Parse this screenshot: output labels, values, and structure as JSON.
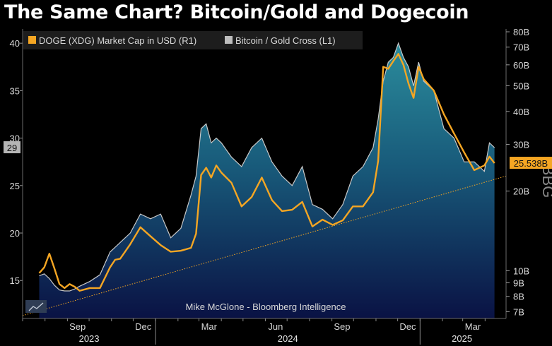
{
  "title": "The Same Chart? Bitcoin/Gold and Dogecoin",
  "credit": "Mike McGlone - Bloomberg Intelligence",
  "watermark": "BBG",
  "colors": {
    "background": "#000000",
    "doge": "#f5a623",
    "btc_gold": "#c8c8c8",
    "trend": "#f5a623"
  },
  "chart_data": {
    "type": "line",
    "series": [
      {
        "name": "DOGE (XDG) Market Cap in USD (R1)",
        "axis": "right",
        "last_value_label": "25.538B",
        "x": [
          "2023-07-24",
          "2023-07-31",
          "2023-08-07",
          "2023-08-14",
          "2023-08-21",
          "2023-08-28",
          "2023-09-04",
          "2023-09-11",
          "2023-09-18",
          "2023-10-02",
          "2023-10-16",
          "2023-10-30",
          "2023-11-06",
          "2023-11-13",
          "2023-11-27",
          "2023-12-11",
          "2023-12-25",
          "2024-01-08",
          "2024-01-22",
          "2024-02-05",
          "2024-02-19",
          "2024-02-26",
          "2024-03-04",
          "2024-03-11",
          "2024-03-18",
          "2024-03-25",
          "2024-04-01",
          "2024-04-15",
          "2024-04-29",
          "2024-05-13",
          "2024-05-27",
          "2024-06-10",
          "2024-06-24",
          "2024-07-08",
          "2024-07-22",
          "2024-08-05",
          "2024-08-19",
          "2024-09-02",
          "2024-09-16",
          "2024-09-30",
          "2024-10-14",
          "2024-10-28",
          "2024-11-04",
          "2024-11-11",
          "2024-11-18",
          "2024-11-25",
          "2024-12-02",
          "2024-12-09",
          "2024-12-16",
          "2024-12-23",
          "2024-12-30",
          "2025-01-06",
          "2025-01-20",
          "2025-02-03",
          "2025-02-17",
          "2025-03-03",
          "2025-03-17",
          "2025-03-31",
          "2025-04-07",
          "2025-04-14"
        ],
        "values": [
          9.8,
          10.3,
          11.6,
          10.2,
          8.9,
          8.6,
          8.9,
          8.7,
          8.4,
          8.6,
          8.6,
          10.3,
          11.0,
          11.1,
          12.6,
          14.6,
          13.5,
          12.5,
          11.8,
          11.9,
          12.2,
          13.8,
          23.0,
          24.5,
          22.5,
          25.0,
          23.5,
          21.5,
          17.5,
          19.0,
          22.5,
          18.5,
          16.8,
          17.0,
          18.2,
          14.7,
          15.6,
          14.9,
          15.5,
          17.5,
          17.5,
          19.8,
          26.0,
          59.0,
          58.0,
          62.0,
          66.0,
          60.0,
          51.0,
          45.0,
          59.0,
          53.0,
          48.0,
          39.0,
          33.0,
          28.0,
          24.0,
          25.0,
          27.0,
          25.5
        ]
      },
      {
        "name": "Bitcoin / Gold Cross (L1)",
        "axis": "left",
        "last_value_label": "29",
        "x": [
          "2023-07-24",
          "2023-07-31",
          "2023-08-07",
          "2023-08-14",
          "2023-08-21",
          "2023-08-28",
          "2023-09-04",
          "2023-09-11",
          "2023-09-18",
          "2023-10-02",
          "2023-10-16",
          "2023-10-30",
          "2023-11-06",
          "2023-11-13",
          "2023-11-27",
          "2023-12-11",
          "2023-12-25",
          "2024-01-08",
          "2024-01-22",
          "2024-02-05",
          "2024-02-19",
          "2024-02-26",
          "2024-03-04",
          "2024-03-11",
          "2024-03-18",
          "2024-03-25",
          "2024-04-01",
          "2024-04-15",
          "2024-04-29",
          "2024-05-13",
          "2024-05-27",
          "2024-06-10",
          "2024-06-24",
          "2024-07-08",
          "2024-07-22",
          "2024-08-05",
          "2024-08-19",
          "2024-09-02",
          "2024-09-16",
          "2024-09-30",
          "2024-10-14",
          "2024-10-28",
          "2024-11-04",
          "2024-11-11",
          "2024-11-18",
          "2024-11-25",
          "2024-12-02",
          "2024-12-09",
          "2024-12-16",
          "2024-12-23",
          "2024-12-30",
          "2025-01-06",
          "2025-01-20",
          "2025-02-03",
          "2025-02-17",
          "2025-03-03",
          "2025-03-17",
          "2025-03-31",
          "2025-04-07",
          "2025-04-14"
        ],
        "values": [
          15.5,
          15.7,
          15.2,
          14.5,
          14.0,
          13.9,
          13.9,
          14.1,
          14.4,
          14.9,
          15.6,
          18.0,
          18.5,
          19.0,
          20.0,
          22.0,
          21.5,
          22.0,
          19.5,
          20.5,
          24.0,
          26.0,
          31.0,
          31.5,
          29.5,
          30.0,
          29.5,
          28.0,
          27.0,
          29.0,
          30.0,
          27.5,
          26.0,
          25.0,
          27.0,
          23.0,
          22.5,
          21.5,
          23.0,
          26.0,
          27.0,
          29.0,
          32.0,
          36.0,
          38.0,
          38.5,
          40.0,
          38.5,
          37.5,
          35.5,
          38.0,
          36.0,
          35.0,
          31.0,
          30.0,
          27.5,
          27.5,
          26.5,
          29.5,
          29.0
        ]
      }
    ],
    "left_axis": {
      "ticks": [
        15,
        20,
        25,
        30,
        35,
        40
      ],
      "range": [
        11,
        41.5
      ]
    },
    "right_axis": {
      "scale": "log",
      "ticks": [
        "7B",
        "8B",
        "9B",
        "10B",
        "20B",
        "30B",
        "40B",
        "50B",
        "60B",
        "70B",
        "80B"
      ],
      "tick_values": [
        7,
        8,
        9,
        10,
        20,
        30,
        40,
        50,
        60,
        70,
        80
      ],
      "range": [
        6.6,
        82
      ]
    },
    "x_axis": {
      "range": [
        "2023-07-01",
        "2025-04-30"
      ],
      "month_labels": [
        "Sep",
        "Dec",
        "Mar",
        "Jun",
        "Sep",
        "Dec",
        "Mar"
      ],
      "year_labels": [
        "2023",
        "2024",
        "2025"
      ]
    },
    "trendline": {
      "axis": "left",
      "from": [
        "2023-07-01",
        11.3
      ],
      "to": [
        "2025-04-30",
        26.0
      ]
    },
    "legend_position": "top-left",
    "grid": false
  }
}
